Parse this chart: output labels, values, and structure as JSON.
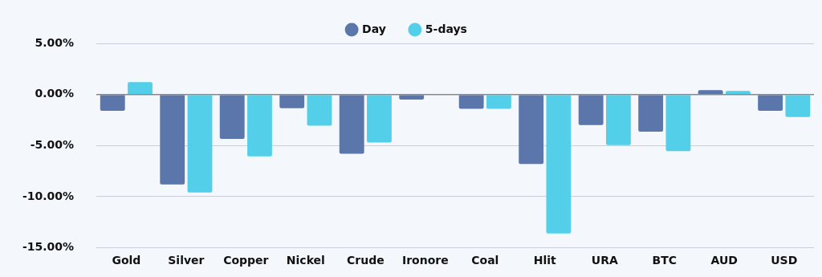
{
  "chart_data": {
    "type": "bar",
    "categories": [
      "Gold",
      "Silver",
      "Copper",
      "Nickel",
      "Crude",
      "Ironore",
      "Coal",
      "Hlit",
      "URA",
      "BTC",
      "AUD",
      "USD"
    ],
    "series": [
      {
        "name": "Day",
        "color": "#5a76aa",
        "values": [
          -1.6,
          -8.8,
          -4.35,
          -1.35,
          -5.8,
          -0.5,
          -1.4,
          -6.8,
          -3.0,
          -3.65,
          0.43,
          -1.6
        ]
      },
      {
        "name": "5-days",
        "color": "#53cfe9",
        "values": [
          1.2,
          -9.6,
          -6.05,
          -3.05,
          -4.7,
          0,
          -1.4,
          -13.6,
          -4.95,
          -5.55,
          0.35,
          -2.2
        ]
      }
    ],
    "ylim": [
      -15,
      5
    ],
    "yticks": [
      {
        "value": -15,
        "label": "-15.00%"
      },
      {
        "value": -10,
        "label": "-10.00%"
      },
      {
        "value": -5,
        "label": "-5.00%"
      },
      {
        "value": 0,
        "label": "0.00%"
      },
      {
        "value": 5,
        "label": "5.00%"
      }
    ],
    "grid": "y",
    "legend": "top"
  }
}
